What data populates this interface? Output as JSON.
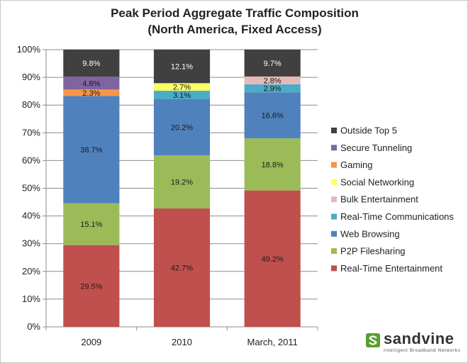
{
  "chart_data": {
    "type": "bar",
    "stacked": true,
    "title": "Peak Period Aggregate Traffic Composition",
    "subtitle": "(North America, Fixed Access)",
    "categories": [
      "2009",
      "2010",
      "March, 2011"
    ],
    "ylim": [
      0,
      100
    ],
    "yticks": [
      "0%",
      "10%",
      "20%",
      "30%",
      "40%",
      "50%",
      "60%",
      "70%",
      "80%",
      "90%",
      "100%"
    ],
    "legend_position": "right",
    "series": [
      {
        "name": "Real-Time Entertainment",
        "color": "#c0504d",
        "values": [
          29.5,
          42.7,
          49.2
        ],
        "labels": [
          "29.5%",
          "42.7%",
          "49.2%"
        ]
      },
      {
        "name": "P2P Filesharing",
        "color": "#9bbb59",
        "values": [
          15.1,
          19.2,
          18.8
        ],
        "labels": [
          "15.1%",
          "19.2%",
          "18.8%"
        ]
      },
      {
        "name": "Web Browsing",
        "color": "#4f81bd",
        "values": [
          38.7,
          20.2,
          16.6
        ],
        "labels": [
          "38.7%",
          "20.2%",
          "16.6%"
        ]
      },
      {
        "name": "Real-Time Communications",
        "color": "#4bacc6",
        "values": [
          0,
          3.1,
          2.9
        ],
        "labels": [
          "",
          "3.1%",
          "2.9%"
        ]
      },
      {
        "name": "Bulk Entertainment",
        "color": "#e6b9b8",
        "values": [
          0,
          0,
          2.8
        ],
        "labels": [
          "",
          "",
          "2.8%"
        ]
      },
      {
        "name": "Social Networking",
        "color": "#ffff66",
        "values": [
          0,
          2.7,
          0
        ],
        "labels": [
          "",
          "2.7%",
          ""
        ]
      },
      {
        "name": "Gaming",
        "color": "#f79646",
        "values": [
          2.3,
          0,
          0
        ],
        "labels": [
          "2.3%",
          "",
          ""
        ]
      },
      {
        "name": "Secure Tunneling",
        "color": "#8064a2",
        "values": [
          4.6,
          0,
          0
        ],
        "labels": [
          "4.6%",
          "",
          ""
        ]
      },
      {
        "name": "Outside Top 5",
        "color": "#404040",
        "values": [
          9.8,
          12.1,
          9.7
        ],
        "labels": [
          "9.8%",
          "12.1%",
          "9.7%"
        ]
      }
    ],
    "legend_order": [
      "Outside Top 5",
      "Secure Tunneling",
      "Gaming",
      "Social Networking",
      "Bulk Entertainment",
      "Real-Time Communications",
      "Web Browsing",
      "P2P Filesharing",
      "Real-Time Entertainment"
    ]
  },
  "logo": {
    "word": "sandvine",
    "tagline": "Intelligent Broadband Networks"
  }
}
